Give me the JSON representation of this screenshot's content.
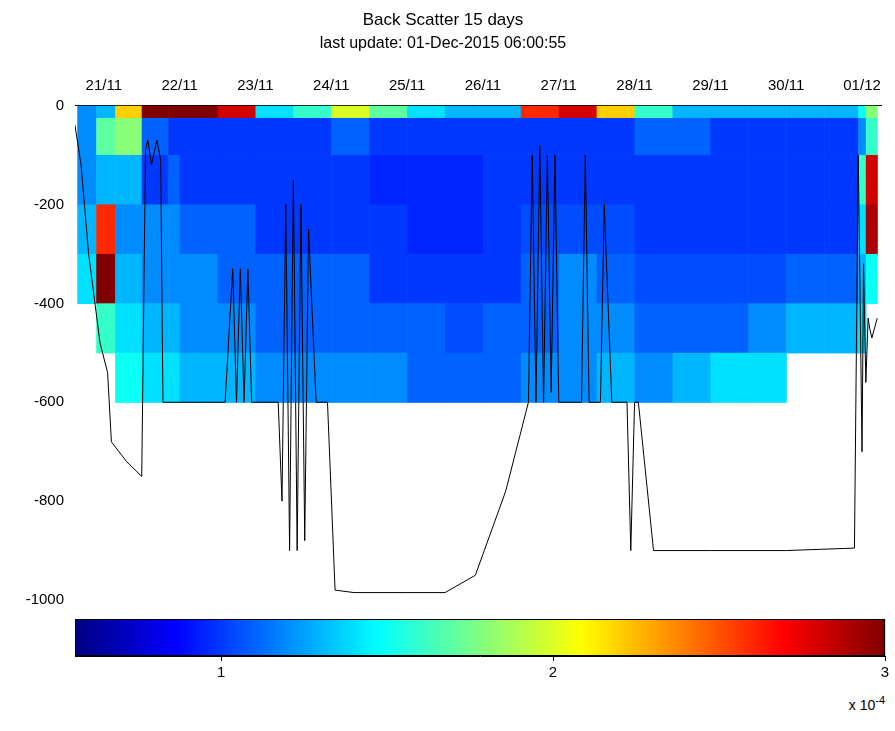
{
  "chart_data": {
    "type": "heatmap",
    "title": "Back Scatter 15 days",
    "subtitle": "last update: 01-Dec-2015 06:00:55",
    "xlim": [
      20.62,
      31.25
    ],
    "xticks": [
      {
        "value": 21,
        "label": "21/11"
      },
      {
        "value": 22,
        "label": "22/11"
      },
      {
        "value": 23,
        "label": "23/11"
      },
      {
        "value": 24,
        "label": "24/11"
      },
      {
        "value": 25,
        "label": "25/11"
      },
      {
        "value": 26,
        "label": "26/11"
      },
      {
        "value": 27,
        "label": "27/11"
      },
      {
        "value": 28,
        "label": "28/11"
      },
      {
        "value": 29,
        "label": "29/11"
      },
      {
        "value": 30,
        "label": "30/11"
      },
      {
        "value": 31,
        "label": "01/12"
      }
    ],
    "ylim": [
      -1000,
      0
    ],
    "yticks": [
      0,
      -200,
      -400,
      -600,
      -800,
      -1000
    ],
    "grid": false,
    "cells": {
      "x_edges": [
        20.65,
        20.9,
        21.15,
        21.5,
        21.85,
        22.0,
        22.5,
        23.0,
        23.5,
        24.0,
        24.5,
        25.0,
        25.5,
        26.0,
        26.5,
        27.0,
        27.5,
        28.0,
        28.5,
        29.0,
        29.5,
        30.0,
        30.5,
        30.95,
        31.05,
        31.2
      ],
      "y_edges": [
        0,
        -25,
        -100,
        -200,
        -300,
        -400,
        -500,
        -600
      ],
      "values": [
        [
          1.2,
          1.3,
          2.2,
          3.0,
          3.0,
          3.0,
          2.8,
          1.4,
          1.6,
          2.0,
          1.7,
          1.4,
          1.3,
          1.3,
          2.6,
          2.8,
          2.2,
          1.6,
          1.3,
          1.3,
          1.3,
          1.3,
          1.3,
          1.5,
          1.8
        ],
        [
          1.2,
          1.7,
          1.8,
          1.1,
          1.0,
          1.0,
          1.0,
          1.0,
          1.0,
          1.1,
          1.0,
          1.0,
          1.0,
          1.0,
          1.0,
          1.0,
          1.0,
          1.1,
          1.1,
          1.0,
          1.0,
          1.0,
          1.0,
          1.2,
          1.6
        ],
        [
          1.2,
          1.3,
          1.3,
          1.0,
          1.1,
          1.0,
          1.0,
          1.0,
          1.0,
          1.0,
          0.95,
          0.95,
          0.95,
          1.0,
          1.0,
          1.0,
          1.0,
          1.0,
          1.0,
          1.0,
          1.0,
          1.0,
          1.0,
          1.6,
          2.8
        ],
        [
          1.3,
          2.6,
          1.2,
          1.2,
          1.2,
          1.1,
          1.1,
          1.0,
          1.0,
          1.0,
          1.0,
          0.95,
          0.95,
          1.0,
          1.05,
          1.05,
          1.05,
          1.0,
          1.0,
          1.0,
          1.0,
          1.0,
          1.0,
          1.4,
          2.9
        ],
        [
          1.4,
          3.0,
          1.3,
          1.2,
          1.2,
          1.2,
          1.1,
          1.1,
          1.1,
          1.1,
          1.0,
          1.0,
          1.0,
          1.0,
          1.1,
          1.2,
          1.1,
          1.05,
          1.05,
          1.05,
          1.05,
          1.1,
          1.1,
          1.3,
          1.5
        ],
        [
          null,
          1.6,
          1.4,
          1.3,
          1.3,
          1.2,
          1.2,
          1.1,
          1.1,
          1.1,
          1.1,
          1.1,
          1.05,
          1.1,
          1.1,
          1.2,
          1.2,
          1.1,
          1.1,
          1.1,
          1.2,
          1.3,
          1.3,
          1.4,
          null
        ],
        [
          null,
          null,
          1.5,
          1.4,
          1.4,
          1.3,
          1.3,
          1.2,
          1.2,
          1.2,
          1.2,
          1.1,
          1.1,
          1.1,
          1.2,
          1.2,
          1.3,
          1.2,
          1.3,
          1.4,
          1.4,
          null,
          null,
          null,
          null
        ]
      ]
    },
    "colorbar": {
      "range": [
        0.56,
        3.0
      ],
      "ticks": [
        1,
        2,
        3
      ],
      "multiplier": "x 10",
      "exponent": "-4"
    },
    "line": {
      "color": "#000000",
      "x": [
        20.62,
        20.7,
        20.8,
        20.95,
        21.05,
        21.1,
        21.3,
        21.5,
        21.55,
        21.58,
        21.63,
        21.7,
        21.75,
        21.78,
        21.95,
        22.1,
        22.3,
        22.4,
        22.6,
        22.7,
        22.75,
        22.8,
        22.85,
        22.9,
        22.95,
        23.0,
        23.05,
        23.3,
        23.35,
        23.4,
        23.45,
        23.5,
        23.55,
        23.6,
        23.65,
        23.7,
        23.8,
        23.85,
        23.95,
        24.05,
        24.3,
        25.0,
        25.5,
        25.9,
        26.3,
        26.6,
        26.65,
        26.7,
        26.75,
        26.8,
        26.85,
        26.9,
        26.95,
        27.0,
        27.3,
        27.35,
        27.4,
        27.55,
        27.6,
        27.7,
        27.9,
        27.95,
        28.0,
        28.05,
        28.25,
        28.35,
        29.0,
        30.0,
        30.9,
        30.95,
        31.0,
        31.02,
        31.05,
        31.08,
        31.1,
        31.13,
        31.2
      ],
      "y": [
        -40,
        -120,
        -300,
        -480,
        -540,
        -680,
        -720,
        -750,
        -90,
        -70,
        -120,
        -70,
        -110,
        -600,
        -600,
        -600,
        -600,
        -600,
        -600,
        -330,
        -600,
        -330,
        -600,
        -330,
        -600,
        -600,
        -600,
        -600,
        -800,
        -200,
        -900,
        -150,
        -900,
        -200,
        -880,
        -250,
        -600,
        -600,
        -600,
        -980,
        -985,
        -985,
        -985,
        -950,
        -780,
        -600,
        -100,
        -600,
        -80,
        -600,
        -100,
        -580,
        -100,
        -600,
        -600,
        -100,
        -600,
        -600,
        -200,
        -600,
        -600,
        -900,
        -600,
        -600,
        -900,
        -900,
        -900,
        -900,
        -895,
        -100,
        -700,
        -320,
        -560,
        -430,
        -450,
        -470,
        -430
      ]
    }
  }
}
